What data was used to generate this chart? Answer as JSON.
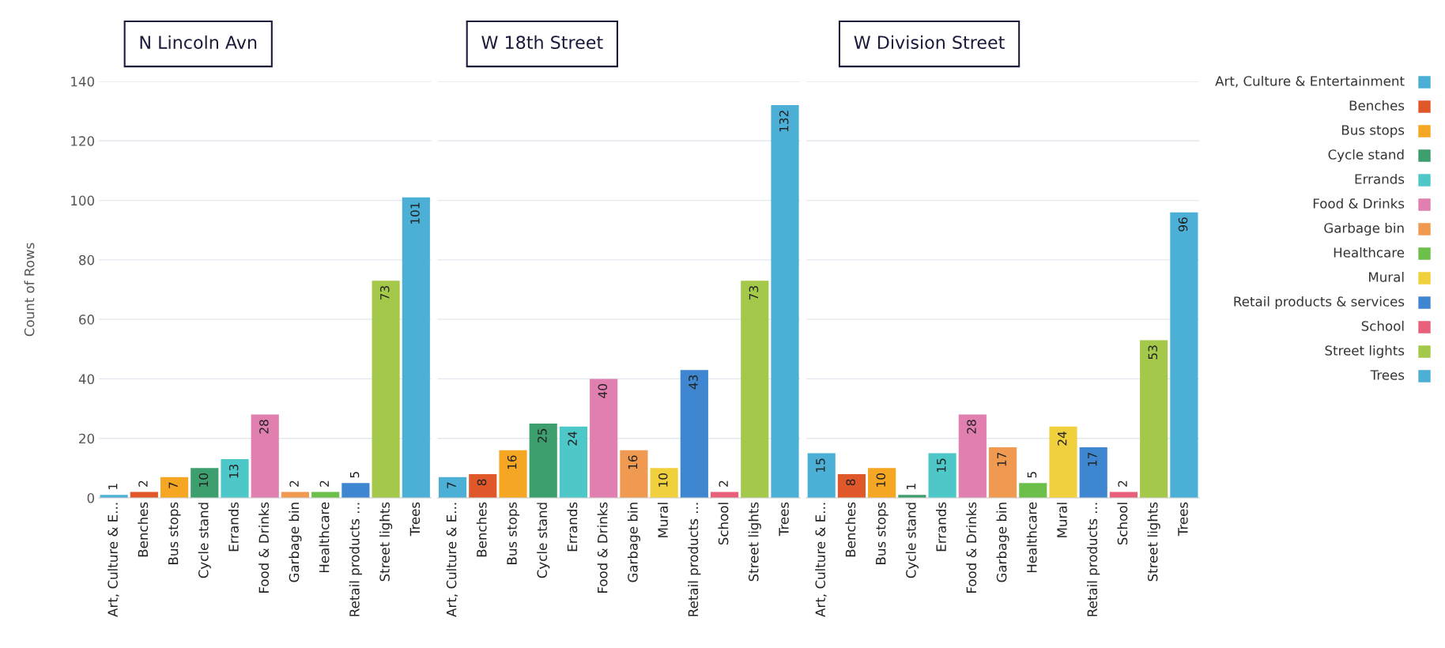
{
  "chart_data": [
    {
      "type": "bar",
      "title": "N Lincoln Avn",
      "ylabel": "Count of Rows",
      "categories": [
        "Art, Culture & E...",
        "Benches",
        "Bus stops",
        "Cycle stand",
        "Errands",
        "Food & Drinks",
        "Garbage bin",
        "Healthcare",
        "Retail products ...",
        "Street lights",
        "Trees"
      ],
      "values": [
        1,
        2,
        7,
        10,
        13,
        28,
        2,
        2,
        5,
        73,
        101
      ],
      "colors": [
        "#4bafd6",
        "#e0572a",
        "#f5a623",
        "#3d9e6e",
        "#4dc7c7",
        "#e07fb0",
        "#ef9a50",
        "#6cc04a",
        "#3f86d0",
        "#a4c94a",
        "#4bafd6"
      ],
      "ylim": [
        0,
        140
      ],
      "yticks": [
        0,
        20,
        40,
        60,
        80,
        100,
        120,
        140
      ],
      "grid": "y",
      "data_labels": true
    },
    {
      "type": "bar",
      "title": "W 18th Street",
      "categories": [
        "Art, Culture & E...",
        "Benches",
        "Bus stops",
        "Cycle stand",
        "Errands",
        "Food & Drinks",
        "Garbage bin",
        "Mural",
        "Retail products ...",
        "School",
        "Street lights",
        "Trees"
      ],
      "values": [
        7,
        8,
        16,
        25,
        24,
        40,
        16,
        10,
        43,
        2,
        73,
        132
      ],
      "colors": [
        "#4bafd6",
        "#e0572a",
        "#f5a623",
        "#3d9e6e",
        "#4dc7c7",
        "#e07fb0",
        "#ef9a50",
        "#f0d03c",
        "#3f86d0",
        "#e8607a",
        "#a4c94a",
        "#4bafd6"
      ],
      "ylim": [
        0,
        140
      ],
      "yticks": [
        0,
        20,
        40,
        60,
        80,
        100,
        120,
        140
      ],
      "grid": "y",
      "data_labels": true,
      "tick_labels": "x"
    },
    {
      "type": "bar",
      "title": "W Division Street",
      "categories": [
        "Art, Culture & E...",
        "Benches",
        "Bus stops",
        "Cycle stand",
        "Errands",
        "Food & Drinks",
        "Garbage bin",
        "Healthcare",
        "Mural",
        "Retail products ...",
        "School",
        "Street lights",
        "Trees"
      ],
      "values": [
        15,
        8,
        10,
        1,
        15,
        28,
        17,
        5,
        24,
        17,
        2,
        53,
        96
      ],
      "colors": [
        "#4bafd6",
        "#e0572a",
        "#f5a623",
        "#3d9e6e",
        "#4dc7c7",
        "#e07fb0",
        "#ef9a50",
        "#6cc04a",
        "#f0d03c",
        "#3f86d0",
        "#e8607a",
        "#a4c94a",
        "#4bafd6"
      ],
      "ylim": [
        0,
        140
      ],
      "yticks": [
        0,
        20,
        40,
        60,
        80,
        100,
        120,
        140
      ],
      "grid": "y",
      "data_labels": true,
      "tick_labels": "x"
    },
    {
      "type": "other",
      "categories": [
        "Art, Culture & Entertainment",
        "Benches",
        "Bus stops",
        "Cycle stand",
        "Errands",
        "Food & Drinks",
        "Garbage bin",
        "Healthcare",
        "Mural",
        "Retail products & services",
        "School",
        "Street lights",
        "Trees"
      ],
      "colors": [
        "#4bafd6",
        "#e0572a",
        "#f5a623",
        "#3d9e6e",
        "#4dc7c7",
        "#e07fb0",
        "#ef9a50",
        "#6cc04a",
        "#f0d03c",
        "#3f86d0",
        "#e8607a",
        "#a4c94a",
        "#4bafd6"
      ]
    }
  ]
}
